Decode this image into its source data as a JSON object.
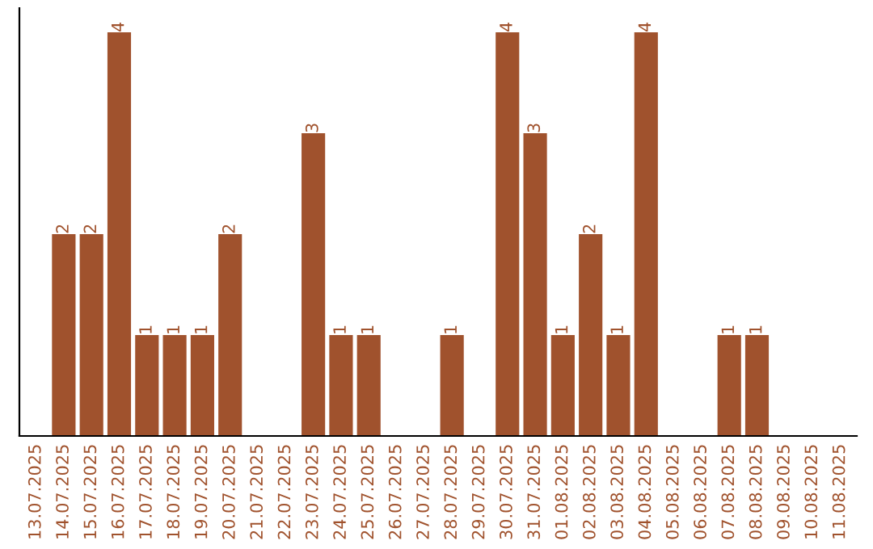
{
  "chart_data": {
    "type": "bar",
    "categories": [
      "13.07.2025",
      "14.07.2025",
      "15.07.2025",
      "16.07.2025",
      "17.07.2025",
      "18.07.2025",
      "19.07.2025",
      "20.07.2025",
      "21.07.2025",
      "22.07.2025",
      "23.07.2025",
      "24.07.2025",
      "25.07.2025",
      "26.07.2025",
      "27.07.2025",
      "28.07.2025",
      "29.07.2025",
      "30.07.2025",
      "31.07.2025",
      "01.08.2025",
      "02.08.2025",
      "03.08.2025",
      "04.08.2025",
      "05.08.2025",
      "06.08.2025",
      "07.08.2025",
      "08.08.2025",
      "09.08.2025",
      "10.08.2025",
      "11.08.2025"
    ],
    "values": [
      0,
      2,
      2,
      4,
      1,
      1,
      1,
      2,
      0,
      0,
      3,
      1,
      1,
      0,
      0,
      1,
      0,
      4,
      3,
      1,
      2,
      1,
      4,
      0,
      0,
      1,
      1,
      0,
      0,
      0
    ],
    "value_labels": [
      null,
      "2",
      "2",
      "4",
      "1",
      "1",
      "1",
      "2",
      null,
      null,
      "3",
      "1",
      "1",
      null,
      null,
      "1",
      null,
      "4",
      "3",
      "1",
      "2",
      "1",
      "4",
      null,
      null,
      "1",
      "1",
      null,
      null,
      null
    ],
    "color": "#a0522d",
    "ylim": [
      0,
      4.24
    ],
    "tick_labels": "x",
    "grid": false,
    "legend": false
  }
}
